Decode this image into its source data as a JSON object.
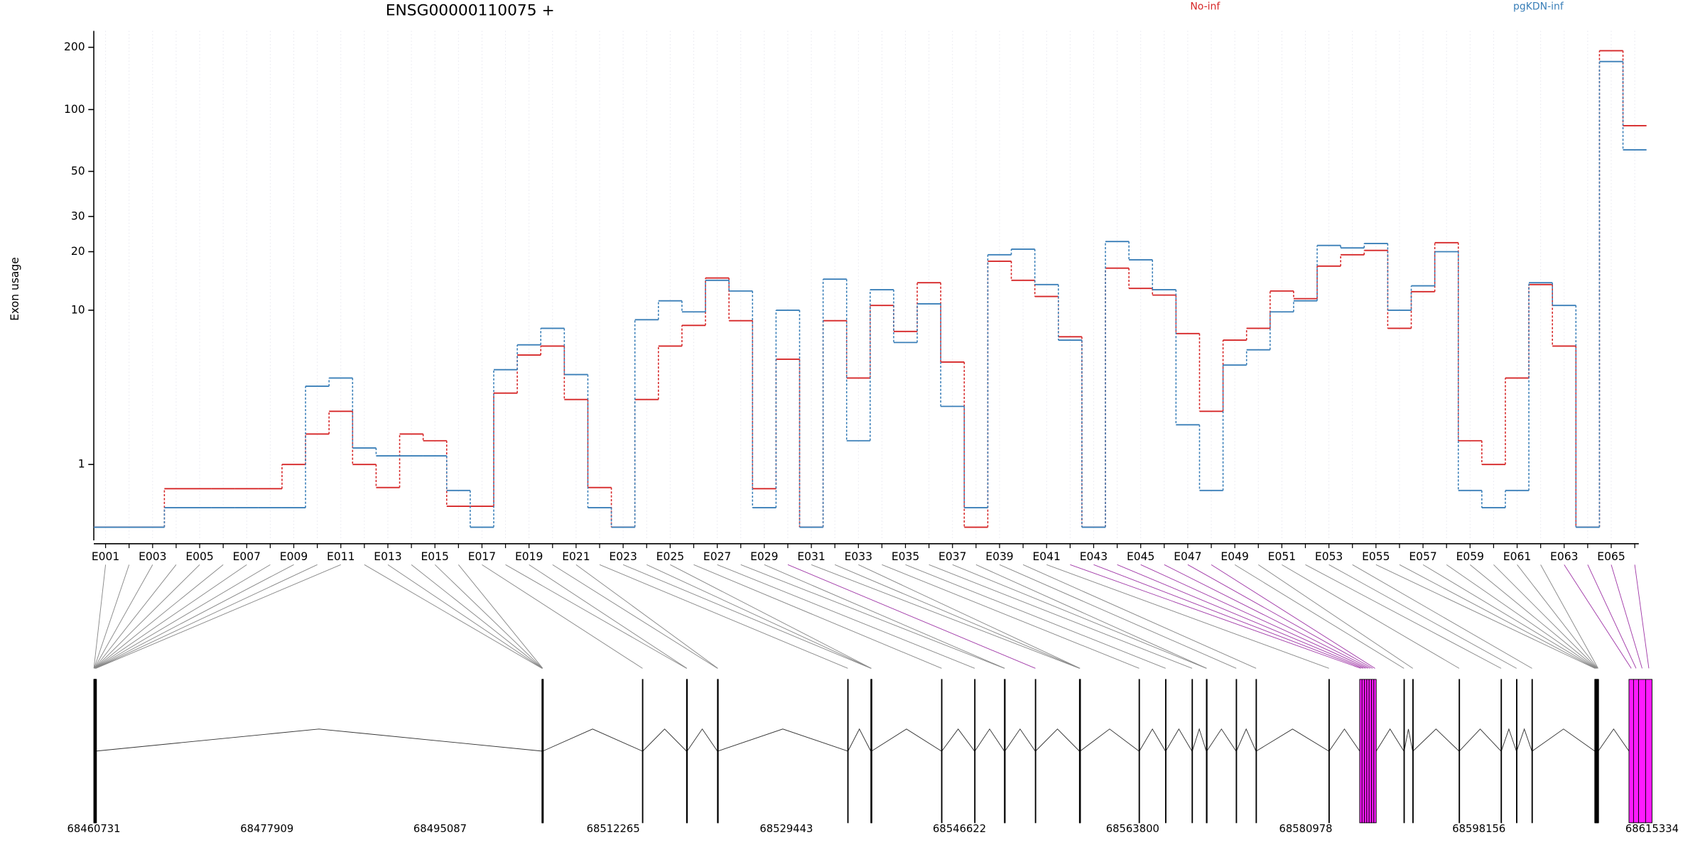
{
  "chart_data": {
    "type": "step",
    "title": "ENSG00000110075 +",
    "ylabel": "Exon usage",
    "yscale": "log1p",
    "categories": [
      "E001",
      null,
      "E003",
      null,
      "E005",
      null,
      "E007",
      null,
      "E009",
      null,
      "E011",
      null,
      "E013",
      null,
      "E015",
      null,
      "E017",
      null,
      "E019",
      null,
      "E021",
      null,
      "E023",
      null,
      "E025",
      null,
      "E027",
      null,
      "E029",
      null,
      "E031",
      null,
      "E033",
      null,
      "E035",
      null,
      "E037",
      null,
      "E039",
      null,
      "E041",
      null,
      "E043",
      null,
      "E045",
      null,
      "E047",
      null,
      "E049",
      null,
      "E051",
      null,
      "E053",
      null,
      "E055",
      null,
      "E057",
      null,
      "E059",
      null,
      "E061",
      null,
      "E063",
      null,
      "E065",
      null
    ],
    "series": [
      {
        "name": "No-inf",
        "color": "#d62728",
        "values": [
          0,
          0,
          0,
          0.53,
          0.53,
          0.53,
          0.53,
          0.53,
          1.0,
          1.8,
          2.6,
          1.0,
          0.55,
          1.8,
          1.6,
          0.26,
          0.26,
          3.4,
          5.7,
          6.4,
          3.1,
          0.55,
          0,
          3.1,
          6.4,
          8.3,
          14.7,
          8.8,
          0.53,
          5.4,
          0,
          8.8,
          4.2,
          10.6,
          7.7,
          13.9,
          5.2,
          0,
          17.9,
          14.3,
          11.8,
          7.2,
          0,
          16.5,
          13,
          12,
          7.5,
          2.6,
          6.9,
          8,
          12.6,
          11.5,
          16.9,
          19.3,
          20.3,
          8,
          12.5,
          22.2,
          1.6,
          1.0,
          4.2,
          13.6,
          6.4,
          0,
          192.6,
          83.5
        ]
      },
      {
        "name": "pgKDN-inf",
        "color": "#3a7fb8",
        "values": [
          0,
          0,
          0,
          0.24,
          0.24,
          0.24,
          0.24,
          0.24,
          0.24,
          3.75,
          4.2,
          1.4,
          1.2,
          1.2,
          1.2,
          0.5,
          0,
          4.7,
          6.5,
          8,
          4.4,
          0.24,
          0,
          8.9,
          11.2,
          9.8,
          14.3,
          12.6,
          0.24,
          10,
          0,
          14.5,
          1.6,
          12.8,
          6.7,
          10.8,
          2.8,
          0.24,
          19.3,
          20.6,
          13.6,
          6.9,
          0,
          22.5,
          18.2,
          12.8,
          2.1,
          0.5,
          5.0,
          6.1,
          9.8,
          11.2,
          21.5,
          20.9,
          22,
          10,
          13.4,
          20,
          0.5,
          0.24,
          0.5,
          13.9,
          10.6,
          0,
          170.8,
          63.7
        ]
      }
    ],
    "ylim": [
      0,
      240
    ],
    "yticks": [
      1,
      10,
      20,
      30,
      50,
      100,
      200
    ],
    "grid": true
  },
  "gene_model": {
    "highlight_color": "#ff1aff",
    "xlim": [
      68460731,
      68615334
    ],
    "xticks": [
      68460731,
      68477909,
      68495087,
      68512265,
      68529443,
      68546622,
      68563800,
      68580978,
      68598156,
      68615334
    ],
    "exons": [
      {
        "start": 68460731,
        "end": 68460746
      },
      {
        "start": 68460751,
        "end": 68460766
      },
      {
        "start": 68460771,
        "end": 68460786
      },
      {
        "start": 68460791,
        "end": 68460806
      },
      {
        "start": 68460811,
        "end": 68460826
      },
      {
        "start": 68460831,
        "end": 68460846
      },
      {
        "start": 68460851,
        "end": 68460866
      },
      {
        "start": 68460871,
        "end": 68460886
      },
      {
        "start": 68460891,
        "end": 68460906
      },
      {
        "start": 68460911,
        "end": 68460926
      },
      {
        "start": 68460931,
        "end": 68460946
      },
      {
        "start": 68505188,
        "end": 68505203
      },
      {
        "start": 68505208,
        "end": 68505223
      },
      {
        "start": 68505228,
        "end": 68505243
      },
      {
        "start": 68505248,
        "end": 68505263
      },
      {
        "start": 68505268,
        "end": 68505283
      },
      {
        "start": 68515153,
        "end": 68515200
      },
      {
        "start": 68519533,
        "end": 68519555
      },
      {
        "start": 68519560,
        "end": 68519600
      },
      {
        "start": 68522599,
        "end": 68522625
      },
      {
        "start": 68522630,
        "end": 68522660
      },
      {
        "start": 68535520,
        "end": 68535560
      },
      {
        "start": 68537819,
        "end": 68537840
      },
      {
        "start": 68537845,
        "end": 68537865
      },
      {
        "start": 68537870,
        "end": 68537900
      },
      {
        "start": 68544827,
        "end": 68544870
      },
      {
        "start": 68548112,
        "end": 68548150
      },
      {
        "start": 68551069,
        "end": 68551090
      },
      {
        "start": 68551095,
        "end": 68551130
      },
      {
        "start": 68554135,
        "end": 68554170,
        "highlight": true
      },
      {
        "start": 68558515,
        "end": 68558535
      },
      {
        "start": 68558540,
        "end": 68558560
      },
      {
        "start": 68558565,
        "end": 68558600
      },
      {
        "start": 68564428,
        "end": 68564470
      },
      {
        "start": 68567056,
        "end": 68567090
      },
      {
        "start": 68569684,
        "end": 68569720
      },
      {
        "start": 68571107,
        "end": 68571125
      },
      {
        "start": 68571130,
        "end": 68571160
      },
      {
        "start": 68574064,
        "end": 68574100
      },
      {
        "start": 68576035,
        "end": 68576070
      },
      {
        "start": 68583262,
        "end": 68583300
      },
      {
        "start": 68586328,
        "end": 68586562,
        "highlight": true
      },
      {
        "start": 68586562,
        "end": 68586796,
        "highlight": true
      },
      {
        "start": 68586796,
        "end": 68587030,
        "highlight": true
      },
      {
        "start": 68587030,
        "end": 68587264,
        "highlight": true
      },
      {
        "start": 68587264,
        "end": 68587498,
        "highlight": true
      },
      {
        "start": 68587498,
        "end": 68587732,
        "highlight": true
      },
      {
        "start": 68587732,
        "end": 68587970,
        "highlight": true
      },
      {
        "start": 68590708,
        "end": 68590740
      },
      {
        "start": 68591584,
        "end": 68591620
      },
      {
        "start": 68596183,
        "end": 68596220
      },
      {
        "start": 68600344,
        "end": 68600380
      },
      {
        "start": 68601877,
        "end": 68601910
      },
      {
        "start": 68603410,
        "end": 68603450
      },
      {
        "start": 68609651,
        "end": 68609686
      },
      {
        "start": 68609696,
        "end": 68609731
      },
      {
        "start": 68609741,
        "end": 68609776
      },
      {
        "start": 68609786,
        "end": 68609821
      },
      {
        "start": 68609831,
        "end": 68609866
      },
      {
        "start": 68609876,
        "end": 68609911
      },
      {
        "start": 68609921,
        "end": 68609956
      },
      {
        "start": 68609966,
        "end": 68610001
      },
      {
        "start": 68613046,
        "end": 68613500,
        "highlight": true
      },
      {
        "start": 68613500,
        "end": 68614000,
        "highlight": true
      },
      {
        "start": 68614000,
        "end": 68614700,
        "highlight": true
      },
      {
        "start": 68614700,
        "end": 68615334,
        "highlight": true
      }
    ]
  }
}
